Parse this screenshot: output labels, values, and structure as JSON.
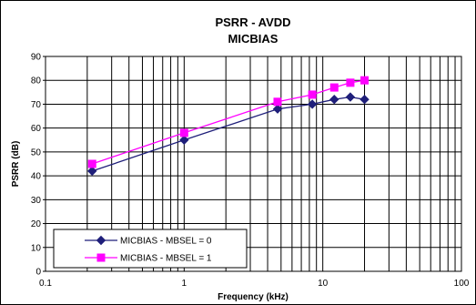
{
  "chart_data": {
    "type": "line",
    "title": "PSRR - AVDD",
    "subtitle": "MICBIAS",
    "xlabel": "Frequency (kHz)",
    "ylabel": "PSRR (dB)",
    "xscale": "log",
    "xlim": [
      0.1,
      100
    ],
    "ylim": [
      0,
      90
    ],
    "x_ticks": [
      "0.1",
      "1",
      "10",
      "100"
    ],
    "y_ticks": [
      "0",
      "10",
      "20",
      "30",
      "40",
      "50",
      "60",
      "70",
      "80",
      "90"
    ],
    "grid": true,
    "legend_position": "bottom-left",
    "series": [
      {
        "name": "MICBIAS - MBSEL = 0",
        "color": "#1f1f7a",
        "marker": "diamond",
        "x": [
          0.217,
          1,
          4.72,
          8.4,
          12.1,
          15.8,
          20
        ],
        "y": [
          42,
          55,
          68,
          70,
          72,
          73,
          72
        ]
      },
      {
        "name": "MICBIAS - MBSEL = 1",
        "color": "#ff00ff",
        "marker": "square",
        "x": [
          0.217,
          1,
          4.72,
          8.4,
          12.1,
          15.8,
          20
        ],
        "y": [
          45,
          58,
          71,
          74,
          77,
          79,
          80
        ]
      }
    ]
  }
}
